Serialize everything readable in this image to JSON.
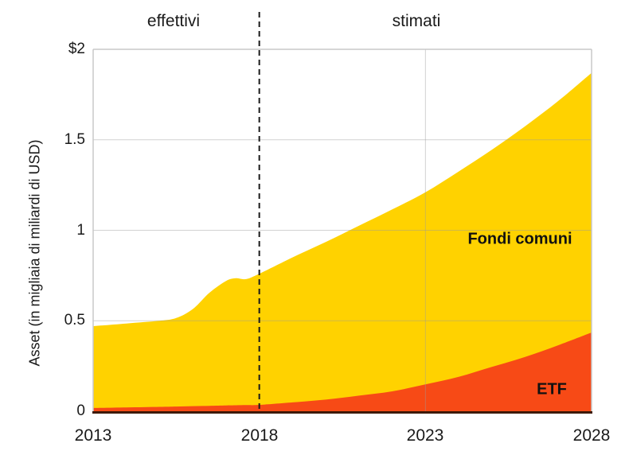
{
  "chart_data": {
    "type": "area",
    "stacked": true,
    "title": "",
    "xlabel": "",
    "ylabel": "Asset (in migliaia di miliardi di USD)",
    "xlim": [
      2013,
      2028
    ],
    "ylim": [
      0,
      2
    ],
    "grid": {
      "h_values": [
        0.5,
        1,
        1.5
      ],
      "v_values": [
        2023
      ],
      "on": true
    },
    "legend_position": "inline-labels",
    "x": [
      2013,
      2014,
      2015,
      2015.5,
      2016,
      2016.5,
      2017,
      2017.3,
      2017.6,
      2018,
      2019,
      2020,
      2021,
      2022,
      2023,
      2024,
      2025,
      2026,
      2027,
      2028
    ],
    "series": [
      {
        "name": "Fondi comuni",
        "color": "#FFD200",
        "values": [
          0.452,
          0.464,
          0.476,
          0.489,
          0.537,
          0.625,
          0.688,
          0.702,
          0.696,
          0.725,
          0.801,
          0.871,
          0.939,
          1.005,
          1.062,
          1.135,
          1.2,
          1.275,
          1.35,
          1.435
        ]
      },
      {
        "name": "ETF",
        "color": "#F74A16",
        "values": [
          0.018,
          0.021,
          0.024,
          0.026,
          0.028,
          0.03,
          0.032,
          0.033,
          0.034,
          0.035,
          0.049,
          0.064,
          0.086,
          0.11,
          0.148,
          0.19,
          0.245,
          0.3,
          0.365,
          0.435
        ]
      }
    ],
    "yticks": [
      {
        "value": 0,
        "label": "0"
      },
      {
        "value": 0.5,
        "label": "0.5"
      },
      {
        "value": 1,
        "label": "1"
      },
      {
        "value": 1.5,
        "label": "1.5"
      },
      {
        "value": 2,
        "label": "$2"
      }
    ],
    "xticks": [
      {
        "value": 2013,
        "label": "2013"
      },
      {
        "value": 2018,
        "label": "2018"
      },
      {
        "value": 2023,
        "label": "2023"
      },
      {
        "value": 2028,
        "label": "2028"
      }
    ],
    "annotations": {
      "divider_x": 2018,
      "left_phase_label": "effettivi",
      "right_phase_label": "stimati"
    }
  },
  "colors": {
    "fondi_comuni": "#FFD200",
    "etf": "#F74A16",
    "baseline_axis": "#3D1A06",
    "gridline": "#9B9B9B",
    "plot_border": "#C8C8C8",
    "divider_dashed": "#1A1A1A",
    "text": "#1A1A1A",
    "background": "#FFFFFF"
  }
}
